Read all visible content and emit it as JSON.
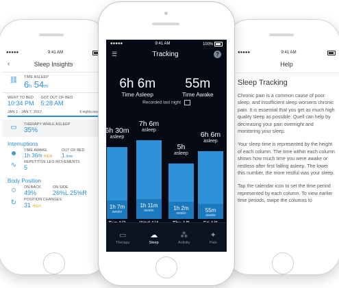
{
  "colors": {
    "accent": "#2a8fd6",
    "bar": "#2e92d8",
    "bar_awake": "#1c79bd",
    "bg_dark": "#050a14",
    "warn": "#f0a030"
  },
  "status": {
    "time": "9:41 AM",
    "battery": "100%"
  },
  "left": {
    "title": "Sleep Insights",
    "time_asleep_label": "TIME ASLEEP",
    "time_asleep_h": "6",
    "time_asleep_m": "54",
    "went_to_bed_label": "WENT TO BED",
    "went_to_bed": "10:34 PM",
    "out_of_bed_label": "GOT OUT OF BED",
    "out_of_bed": "5:28 AM",
    "range": "JAN 1 - JAN 7, 2017",
    "nights": "6 nights reco",
    "therapy_label": "THERAPY WHILE ASLEEP",
    "therapy_value": "35%",
    "interruptions_title": "Interruptions",
    "time_awake_label": "TIME AWAKE",
    "time_awake": "1h 36m",
    "time_awake_flag": "HIGH",
    "out_bed_label": "OUT OF BED",
    "out_bed_count": "1",
    "out_bed_unit": "time",
    "rlm_label": "REPETITIVE LEG MOVEMENTS",
    "rlm_value": "5",
    "body_title": "Body Position",
    "on_back_label": "ON BACK",
    "on_back": "49%",
    "on_side_label": "ON SIDE",
    "on_side": "26%L 25%R",
    "pos_changes_label": "POSITION CHANGES",
    "pos_changes": "31",
    "pos_changes_flag": "HIGH"
  },
  "center": {
    "title": "Tracking",
    "time_asleep_h": "6h",
    "time_asleep_m": "6m",
    "time_asleep_label": "Time Asleep",
    "time_awake": "55m",
    "time_awake_label": "Time Awake",
    "recorded": "Recorded last night",
    "tabs": [
      {
        "label": "Therapy",
        "icon": "therapy-icon"
      },
      {
        "label": "Sleep",
        "icon": "sleep-icon"
      },
      {
        "label": "Activity",
        "icon": "activity-icon"
      },
      {
        "label": "Pain",
        "icon": "pain-icon"
      }
    ],
    "active_tab": "Sleep"
  },
  "chart_data": {
    "type": "bar",
    "categories": [
      "Tue 1/3",
      "Wed 1/4",
      "Thu 1/5",
      "Fri 1/6"
    ],
    "asleep_labels": [
      "6h 30m",
      "7h 6m",
      "5h",
      "6h 6m"
    ],
    "asleep_sub": "asleep",
    "awake_labels": [
      "1h 7m",
      "1h 11m",
      "1h 2m",
      "55m"
    ],
    "awake_sub": "awake",
    "series": [
      {
        "name": "asleep",
        "values": [
          390,
          426,
          300,
          366
        ]
      },
      {
        "name": "awake",
        "values": [
          67,
          71,
          62,
          55
        ]
      }
    ]
  },
  "right": {
    "title": "Help",
    "heading": "Sleep Tracking",
    "p1": "Chronic pain is a common cause of poor sleep, and insufficient sleep worsens chronic pain. It is essential that you get as much high quality sleep as possible. Quell can help by decreasing your pain overnight and monitoring your sleep.",
    "p2": "Your sleep time is represented by the height of each column. The time within each column shows how much time you were awake or restless after first falling asleep. The lower this number, the more restful was your sleep.",
    "p3": "Tap the calendar icon to set the time period represented by each column. To view earlier time periods, swipe the columns to"
  }
}
